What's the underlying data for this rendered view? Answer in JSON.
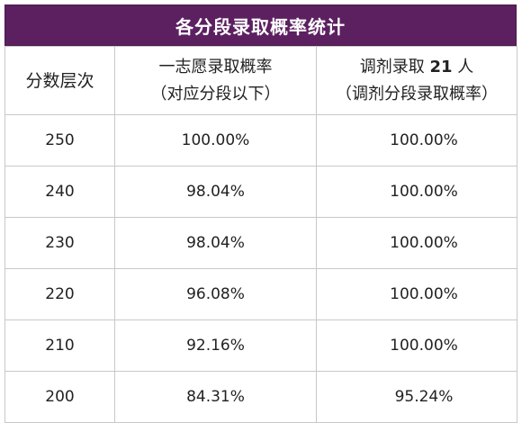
{
  "title": "各分段录取概率统计",
  "header": {
    "col1": "分数层次",
    "col2_line1": "一志愿录取概率",
    "col2_line2": "（对应分段以下）",
    "col3_line1_prefix": "调剂录取",
    "col3_line1_number": "21",
    "col3_line1_suffix": "人",
    "col3_line2": "（调剂分段录取概率）"
  },
  "rows": [
    {
      "score": "250",
      "first_choice": "100.00%",
      "adjusted": "100.00%"
    },
    {
      "score": "240",
      "first_choice": "98.04%",
      "adjusted": "100.00%"
    },
    {
      "score": "230",
      "first_choice": "98.04%",
      "adjusted": "100.00%"
    },
    {
      "score": "220",
      "first_choice": "96.08%",
      "adjusted": "100.00%"
    },
    {
      "score": "210",
      "first_choice": "92.16%",
      "adjusted": "100.00%"
    },
    {
      "score": "200",
      "first_choice": "84.31%",
      "adjusted": "95.24%"
    }
  ]
}
